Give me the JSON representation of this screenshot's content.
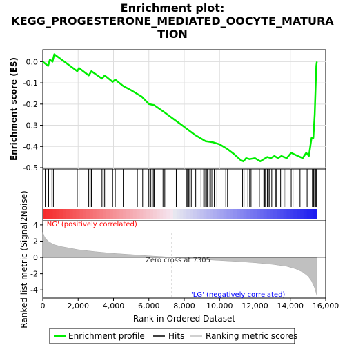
{
  "chart_data": {
    "type": "line",
    "title_lines": [
      "Enrichment plot:",
      "KEGG_PROGESTERONE_MEDIATED_OOCYTE_MATURA",
      "TION"
    ],
    "top_panel": {
      "ylabel": "Enrichment score (ES)",
      "ylim": [
        -0.5,
        0.05
      ],
      "yticks": [
        "0.0",
        "-0.1",
        "-0.2",
        "-0.3",
        "-0.4",
        "-0.5"
      ],
      "ytick_values": [
        0.0,
        -0.1,
        -0.2,
        -0.3,
        -0.4,
        -0.5
      ],
      "series": [
        {
          "name": "Enrichment profile",
          "color": "#00ee00",
          "x": [
            0,
            300,
            400,
            550,
            650,
            1950,
            2050,
            2600,
            2750,
            3350,
            3500,
            3950,
            4100,
            4550,
            5000,
            5600,
            6000,
            6300,
            6900,
            7300,
            7800,
            8200,
            8600,
            9200,
            9600,
            10000,
            10400,
            10800,
            11200,
            11350,
            11500,
            11700,
            12000,
            12300,
            12500,
            12700,
            12900,
            13100,
            13300,
            13500,
            13800,
            14050,
            14300,
            14700,
            14900,
            15050,
            15200,
            15300,
            15380,
            15430,
            15470,
            15500
          ],
          "y": [
            0.0,
            -0.02,
            0.01,
            0.0,
            0.035,
            -0.045,
            -0.03,
            -0.065,
            -0.045,
            -0.08,
            -0.065,
            -0.095,
            -0.085,
            -0.115,
            -0.135,
            -0.165,
            -0.2,
            -0.205,
            -0.24,
            -0.265,
            -0.295,
            -0.32,
            -0.345,
            -0.375,
            -0.38,
            -0.39,
            -0.41,
            -0.435,
            -0.465,
            -0.47,
            -0.455,
            -0.46,
            -0.455,
            -0.47,
            -0.46,
            -0.45,
            -0.455,
            -0.445,
            -0.455,
            -0.445,
            -0.455,
            -0.43,
            -0.44,
            -0.455,
            -0.43,
            -0.445,
            -0.36,
            -0.36,
            -0.25,
            -0.12,
            -0.02,
            0.0
          ]
        }
      ],
      "hits": [
        140,
        330,
        520,
        600,
        1950,
        2050,
        2600,
        2680,
        2750,
        3350,
        3420,
        3500,
        3950,
        4100,
        4550,
        5350,
        5650,
        6000,
        6100,
        6180,
        6250,
        6300,
        6800,
        6900,
        7550,
        8100,
        8150,
        8200,
        8260,
        8320,
        8400,
        8650,
        8950,
        9100,
        9170,
        9250,
        9300,
        9350,
        9450,
        9520,
        9600,
        9700,
        9850,
        10350,
        10450,
        11300,
        11380,
        11600,
        11700,
        11780,
        12000,
        12250,
        12500,
        12550,
        12600,
        12700,
        12800,
        12850,
        12950,
        13150,
        13200,
        13450,
        13650,
        13750,
        14050,
        14150,
        14550,
        14950,
        15250,
        15320,
        15380,
        15440,
        15480
      ]
    },
    "bottom_panel": {
      "ylabel": "Ranked list metric (Signal2Noise)",
      "ylim": [
        -5,
        4.5
      ],
      "yticks": [
        "4",
        "2",
        "0",
        "-2",
        "-4"
      ],
      "ytick_values": [
        4,
        2,
        0,
        -2,
        -4
      ],
      "metric_x": [
        0,
        100,
        300,
        600,
        1000,
        2000,
        3000,
        4000,
        5000,
        6000,
        7000,
        7305,
        8000,
        9000,
        10000,
        11000,
        12000,
        13000,
        13800,
        14300,
        14700,
        15000,
        15200,
        15350,
        15450,
        15500
      ],
      "metric_y": [
        3.1,
        2.5,
        2.0,
        1.6,
        1.35,
        0.95,
        0.7,
        0.5,
        0.35,
        0.2,
        0.06,
        0.0,
        -0.12,
        -0.25,
        -0.38,
        -0.5,
        -0.65,
        -0.85,
        -1.1,
        -1.4,
        -1.8,
        -2.3,
        -2.9,
        -3.6,
        -4.3,
        -4.7
      ],
      "zero_cross_label": "Zero cross at 7305",
      "zero_cross_x": 7305,
      "pos_label": "'NG' (positively correlated)",
      "neg_label": "'LG' (negatively correlated)"
    },
    "x_axis": {
      "xlabel": "Rank in Ordered Dataset",
      "xlim": [
        0,
        16000
      ],
      "xticks": [
        "0",
        "2,000",
        "4,000",
        "6,000",
        "8,000",
        "10,000",
        "12,000",
        "14,000",
        "16,000"
      ],
      "xtick_values": [
        0,
        2000,
        4000,
        6000,
        8000,
        10000,
        12000,
        14000,
        16000
      ]
    },
    "legend": {
      "placement": "bottom",
      "entries": [
        "Enrichment profile",
        "Hits",
        "Ranking metric scores"
      ]
    },
    "colors": {
      "enrichment": "#00ee00",
      "hits": "#000000",
      "metric": "#c0c0c0",
      "pos_label": "#ff0000",
      "neg_label": "#0000ff"
    }
  }
}
